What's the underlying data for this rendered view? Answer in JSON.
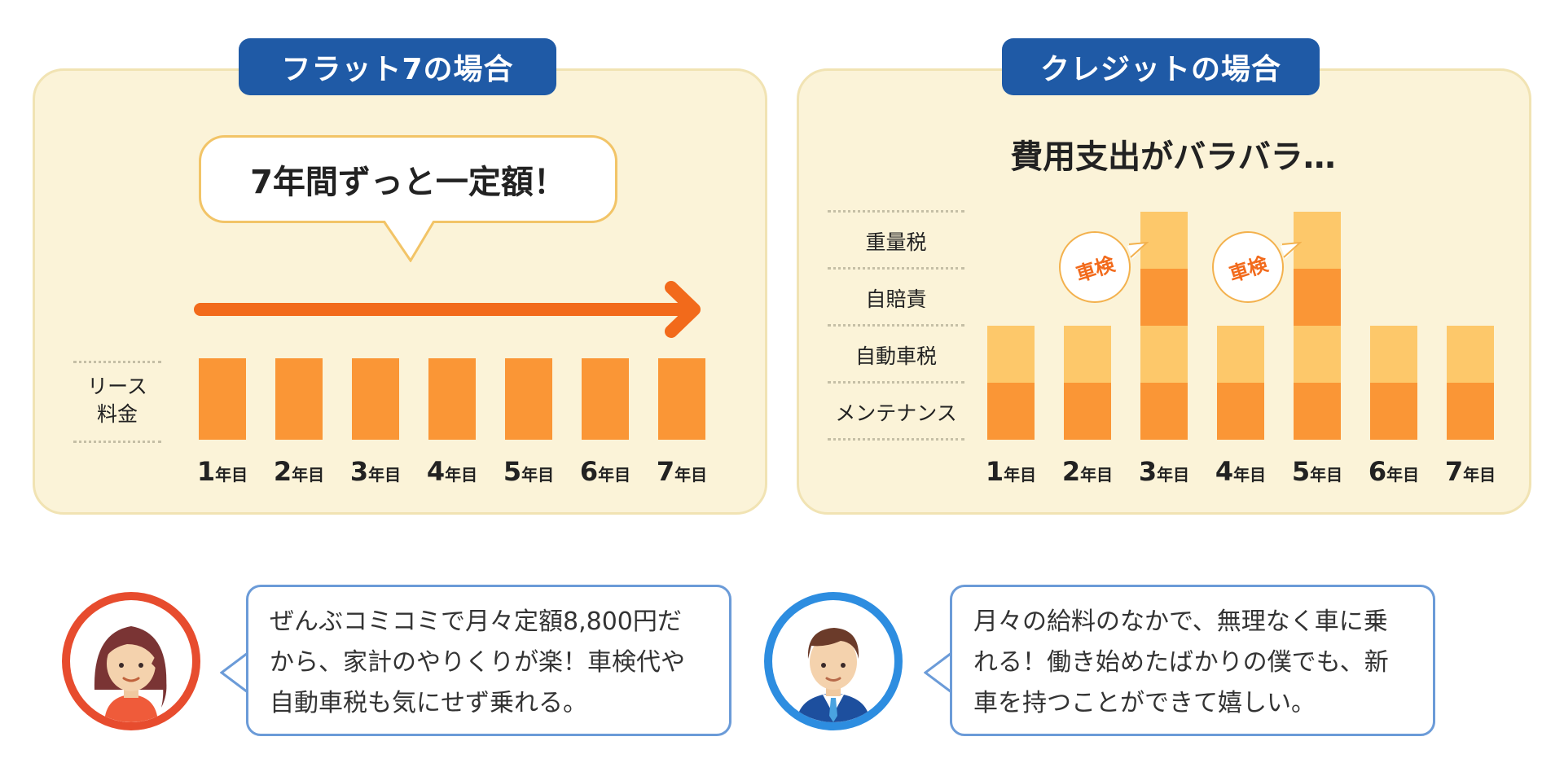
{
  "left_panel": {
    "title": "フラット7の場合",
    "bubble": "7年間ずっと一定額！",
    "category_label_line1": "リース",
    "category_label_line2": "料金",
    "ticks": [
      {
        "num": "1",
        "unit": "年目"
      },
      {
        "num": "2",
        "unit": "年目"
      },
      {
        "num": "3",
        "unit": "年目"
      },
      {
        "num": "4",
        "unit": "年目"
      },
      {
        "num": "5",
        "unit": "年目"
      },
      {
        "num": "6",
        "unit": "年目"
      },
      {
        "num": "7",
        "unit": "年目"
      }
    ],
    "bar_levels": [
      1,
      1,
      1,
      1,
      1,
      1,
      1
    ]
  },
  "right_panel": {
    "title": "クレジットの場合",
    "heading": "費用支出がバラバラ…",
    "categories": [
      "重量税",
      "自賠責",
      "自動車税",
      "メンテナンス"
    ],
    "ticks": [
      {
        "num": "1",
        "unit": "年目"
      },
      {
        "num": "2",
        "unit": "年目"
      },
      {
        "num": "3",
        "unit": "年目"
      },
      {
        "num": "4",
        "unit": "年目"
      },
      {
        "num": "5",
        "unit": "年目"
      },
      {
        "num": "6",
        "unit": "年目"
      },
      {
        "num": "7",
        "unit": "年目"
      }
    ],
    "stack_counts": [
      2,
      2,
      4,
      2,
      4,
      2,
      2
    ],
    "inspection_label": "車検",
    "inspection_years": [
      3,
      5
    ]
  },
  "comments": {
    "woman_lines": [
      "ぜんぶコミコミで月々定額8,800円だ",
      "から、家計のやりくりが楽！車検代や",
      "自動車税も気にせず乗れる。"
    ],
    "man_lines": [
      "月々の給料のなかで、無理なく車に乗",
      "れる！働き始めたばかりの僕でも、新",
      "車を持つことができて嬉しい。"
    ]
  },
  "colors": {
    "title_bg": "#1f5aa6",
    "panel_bg": "#fbf3d8",
    "bar_dark": "#fa9636",
    "bar_light": "#fdc86a",
    "arrow": "#f26a1b",
    "woman_ring": "#e74c2e",
    "man_ring": "#2d8de0",
    "speech_border": "#6b9bd8"
  }
}
